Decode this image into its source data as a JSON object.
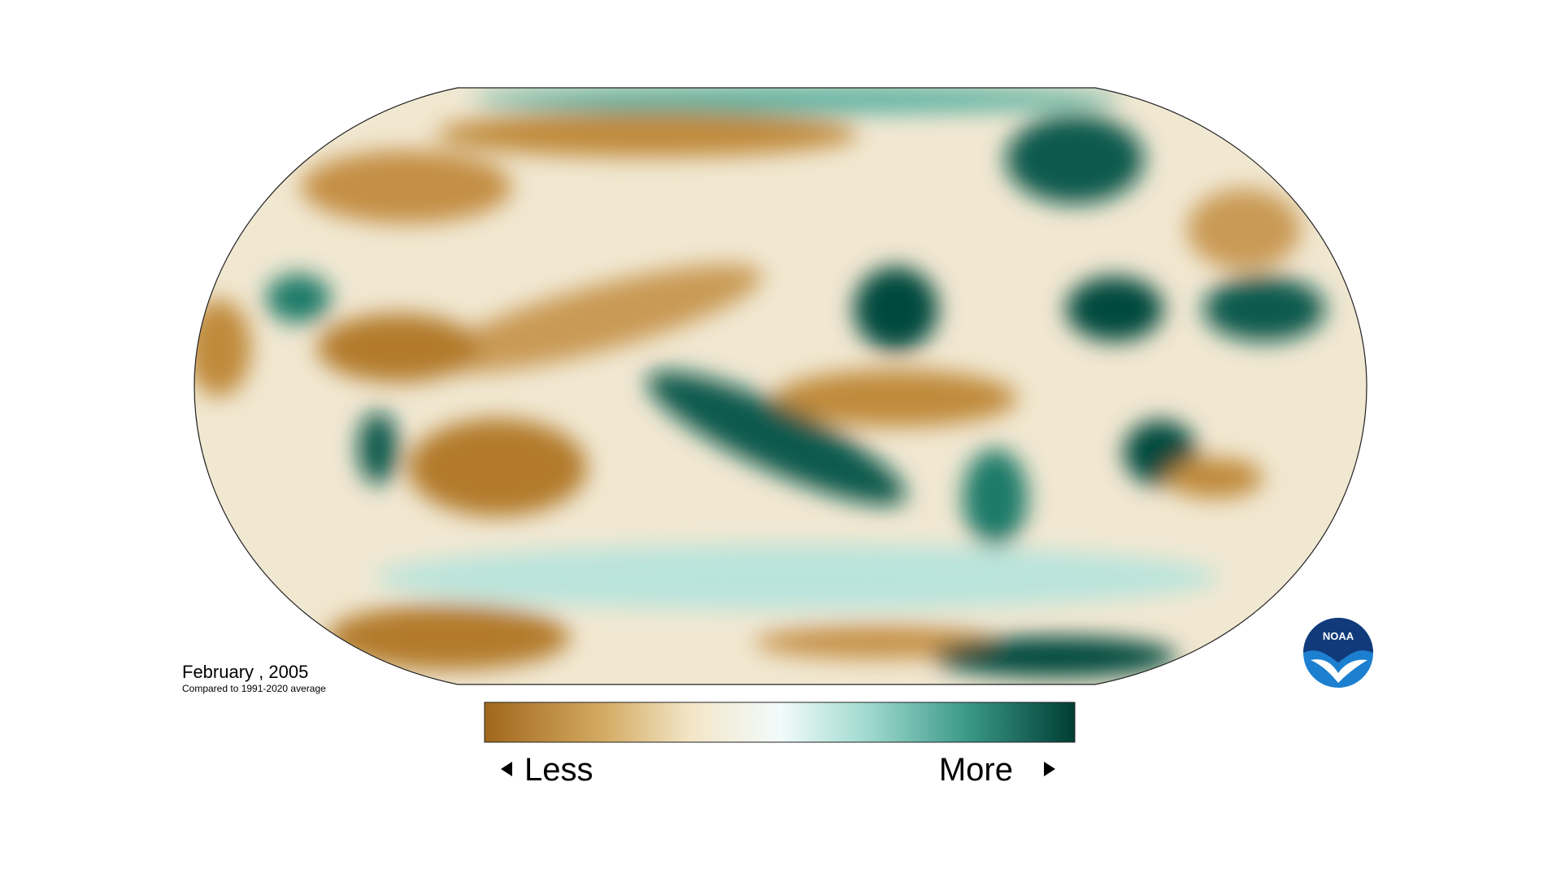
{
  "title": "February , 2005",
  "subtitle": "Compared to 1991-2020 average",
  "legend": {
    "less": "Less",
    "more": "More"
  },
  "logo": {
    "text": "NOAA"
  }
}
